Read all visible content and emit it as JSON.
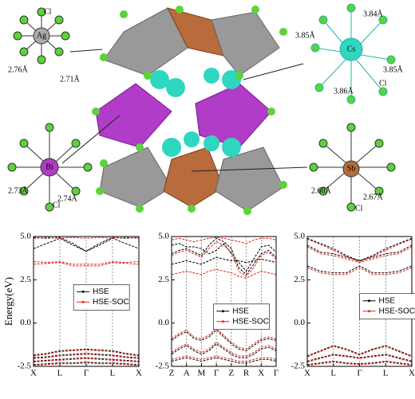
{
  "structure": {
    "ag": {
      "atom": "Ag",
      "bond1": "2.76Å",
      "bond2": "2.71Å",
      "ligand": "Cl"
    },
    "cs": {
      "atom": "Cs",
      "bond1": "3.84Å",
      "bond2": "3.85Å",
      "bond3": "3.85Å",
      "bond4": "3.86Å",
      "ligand": "Cl"
    },
    "bi": {
      "atom": "Bi",
      "bond1": "2.73Å",
      "bond2": "2.74Å",
      "ligand": "Cl"
    },
    "sb": {
      "atom": "Sb",
      "bond1": "2.68Å",
      "bond2": "2.67Å",
      "ligand": "Cl"
    }
  },
  "chart_data": [
    {
      "type": "line",
      "y_label": "Energy(eV)",
      "legend": "center",
      "grid": true,
      "x": [
        0,
        0.5,
        1,
        1.5,
        2,
        2.5,
        3,
        3.5,
        4
      ],
      "xlim": [
        0,
        4
      ],
      "xticks": [
        {
          "value": 0,
          "label": "X"
        },
        {
          "value": 1,
          "label": "L"
        },
        {
          "value": 2,
          "label": "Γ"
        },
        {
          "value": 3,
          "label": "L"
        },
        {
          "value": 4,
          "label": "X"
        }
      ],
      "ylim": [
        -2.5,
        5.0
      ],
      "yticks": [
        -2.5,
        {
          "value": 0,
          "label": "0.0"
        },
        2.5,
        {
          "value": 5,
          "label": "5.0"
        }
      ],
      "series": [
        {
          "name": "HSE",
          "color": "#000000",
          "bands": [
            [
              4.95,
              4.9,
              4.95,
              4.6,
              4.15,
              4.6,
              4.95,
              4.9,
              4.95
            ],
            [
              4.3,
              4.6,
              4.9,
              4.5,
              4.15,
              4.5,
              4.9,
              4.6,
              4.3
            ],
            [
              -1.85,
              -1.75,
              -1.6,
              -1.55,
              -1.5,
              -1.55,
              -1.6,
              -1.75,
              -1.85
            ],
            [
              -2.0,
              -1.95,
              -1.85,
              -1.8,
              -1.75,
              -1.8,
              -1.85,
              -1.95,
              -2.0
            ],
            [
              -2.2,
              -2.15,
              -2.1,
              -2.05,
              -2.0,
              -2.05,
              -2.1,
              -2.15,
              -2.2
            ],
            [
              -2.4,
              -2.35,
              -2.3,
              -2.3,
              -2.25,
              -2.3,
              -2.3,
              -2.35,
              -2.4
            ]
          ]
        },
        {
          "name": "HSE-SOC",
          "color": "#e8231c",
          "bands": [
            [
              4.9,
              4.95,
              4.9,
              4.95,
              4.9,
              4.95,
              4.9,
              4.95,
              4.9
            ],
            [
              3.55,
              3.5,
              3.55,
              3.4,
              3.4,
              3.4,
              3.55,
              3.5,
              3.55
            ],
            [
              3.4,
              3.45,
              3.5,
              3.3,
              3.3,
              3.3,
              3.5,
              3.45,
              3.4
            ],
            [
              -1.9,
              -1.8,
              -1.65,
              -1.6,
              -1.55,
              -1.6,
              -1.65,
              -1.8,
              -1.9
            ],
            [
              -2.05,
              -2.0,
              -1.9,
              -1.85,
              -1.8,
              -1.85,
              -1.9,
              -2.0,
              -2.05
            ],
            [
              -2.25,
              -2.2,
              -2.15,
              -2.1,
              -2.05,
              -2.1,
              -2.15,
              -2.2,
              -2.25
            ],
            [
              -2.45,
              -2.4,
              -2.35,
              -2.35,
              -2.3,
              -2.35,
              -2.35,
              -2.4,
              -2.45
            ]
          ]
        }
      ]
    },
    {
      "type": "line",
      "legend": "center right",
      "grid": true,
      "x": [
        0,
        0.5,
        1,
        1.5,
        2,
        2.5,
        3,
        3.5,
        4,
        4.5,
        5,
        5.5,
        6,
        6.5,
        7
      ],
      "xlim": [
        0,
        7
      ],
      "xticks": [
        {
          "value": 0,
          "label": "Z"
        },
        {
          "value": 1,
          "label": "A"
        },
        {
          "value": 2,
          "label": "M"
        },
        {
          "value": 3,
          "label": "Γ"
        },
        {
          "value": 4,
          "label": "Z"
        },
        {
          "value": 5,
          "label": "R"
        },
        {
          "value": 6,
          "label": "X"
        },
        {
          "value": 7,
          "label": "Γ"
        }
      ],
      "ylim": [
        -2.5,
        5.0
      ],
      "yticks": [
        -2.5,
        {
          "value": 0,
          "label": "0.0"
        },
        2.5,
        {
          "value": 5,
          "label": "5.0"
        }
      ],
      "series": [
        {
          "name": "HSE",
          "color": "#000000",
          "bands": [
            [
              4.0,
              4.2,
              4.3,
              4.1,
              3.9,
              4.5,
              4.9,
              4.7,
              4.3,
              3.2,
              2.8,
              3.4,
              4.0,
              4.2,
              3.8
            ],
            [
              4.5,
              4.6,
              4.4,
              4.4,
              4.3,
              4.0,
              4.2,
              4.6,
              4.0,
              3.5,
              3.0,
              3.7,
              4.4,
              4.5,
              4.1
            ],
            [
              3.4,
              3.5,
              3.6,
              3.5,
              3.4,
              3.6,
              3.8,
              3.7,
              3.6,
              3.6,
              3.5,
              3.6,
              3.7,
              3.6,
              3.5
            ],
            [
              -1.0,
              -0.7,
              -0.5,
              -0.9,
              -1.0,
              -0.8,
              -0.4,
              -0.8,
              -1.2,
              -1.5,
              -1.6,
              -1.3,
              -1.0,
              -0.9,
              -1.0
            ],
            [
              -1.8,
              -1.5,
              -1.3,
              -1.6,
              -1.8,
              -1.6,
              -1.2,
              -1.5,
              -1.8,
              -2.0,
              -2.0,
              -1.8,
              -1.5,
              -1.4,
              -1.6
            ],
            [
              -2.2,
              -2.1,
              -2.0,
              -2.1,
              -2.2,
              -2.1,
              -2.0,
              -2.1,
              -2.2,
              -2.3,
              -2.3,
              -2.2,
              -2.1,
              -2.1,
              -2.2
            ]
          ]
        },
        {
          "name": "HSE-SOC",
          "color": "#e8231c",
          "bands": [
            [
              4.8,
              4.9,
              4.8,
              4.7,
              4.8,
              4.9,
              4.95,
              4.9,
              4.8,
              4.7,
              4.6,
              4.8,
              4.9,
              4.9,
              4.8
            ],
            [
              3.9,
              4.1,
              4.2,
              4.0,
              3.8,
              4.3,
              4.7,
              4.5,
              4.1,
              3.0,
              2.7,
              3.2,
              3.9,
              4.1,
              3.7
            ],
            [
              2.8,
              2.9,
              3.0,
              2.9,
              2.8,
              3.0,
              3.1,
              3.0,
              2.9,
              2.7,
              2.6,
              2.8,
              3.0,
              2.9,
              2.8
            ],
            [
              -0.9,
              -0.6,
              -0.4,
              -0.8,
              -0.9,
              -0.7,
              -0.3,
              -0.7,
              -1.1,
              -1.4,
              -1.5,
              -1.2,
              -0.9,
              -0.8,
              -0.9
            ],
            [
              -1.7,
              -1.4,
              -1.2,
              -1.5,
              -1.7,
              -1.5,
              -1.1,
              -1.4,
              -1.7,
              -1.9,
              -1.9,
              -1.7,
              -1.4,
              -1.3,
              -1.5
            ],
            [
              -2.1,
              -2.0,
              -1.9,
              -2.0,
              -2.1,
              -2.0,
              -1.9,
              -2.0,
              -2.1,
              -2.2,
              -2.2,
              -2.1,
              -2.0,
              -2.0,
              -2.1
            ]
          ]
        }
      ]
    },
    {
      "type": "line",
      "legend": "right",
      "grid": true,
      "x": [
        0,
        0.5,
        1,
        1.5,
        2,
        2.5,
        3,
        3.5,
        4
      ],
      "xlim": [
        0,
        4
      ],
      "xticks": [
        {
          "value": 0,
          "label": "X"
        },
        {
          "value": 1,
          "label": "L"
        },
        {
          "value": 2,
          "label": "Γ"
        },
        {
          "value": 3,
          "label": "L"
        },
        {
          "value": 4,
          "label": "X"
        }
      ],
      "ylim": [
        -2.5,
        5.0
      ],
      "yticks": [
        -2.5,
        {
          "value": 0,
          "label": "0.0"
        },
        2.5,
        {
          "value": 5,
          "label": "5.0"
        }
      ],
      "series": [
        {
          "name": "HSE",
          "color": "#000000",
          "bands": [
            [
              4.5,
              4.1,
              4.0,
              3.8,
              3.6,
              3.8,
              4.0,
              4.1,
              4.5
            ],
            [
              4.9,
              4.6,
              4.3,
              3.9,
              3.6,
              3.9,
              4.3,
              4.6,
              4.9
            ],
            [
              3.3,
              3.0,
              2.9,
              2.9,
              3.3,
              2.9,
              2.9,
              3.0,
              3.3
            ],
            [
              -1.9,
              -1.6,
              -1.3,
              -1.5,
              -1.8,
              -1.5,
              -1.3,
              -1.6,
              -1.9
            ],
            [
              -2.2,
              -2.0,
              -1.8,
              -1.9,
              -2.0,
              -1.9,
              -1.8,
              -2.0,
              -2.2
            ],
            [
              -2.4,
              -2.3,
              -2.2,
              -2.3,
              -2.35,
              -2.3,
              -2.2,
              -2.3,
              -2.4
            ]
          ]
        },
        {
          "name": "HSE-SOC",
          "color": "#e8231c",
          "bands": [
            [
              4.4,
              4.0,
              3.9,
              3.7,
              3.5,
              3.7,
              3.9,
              4.0,
              4.4
            ],
            [
              4.85,
              4.55,
              4.2,
              3.85,
              3.55,
              3.85,
              4.2,
              4.55,
              4.85
            ],
            [
              3.2,
              2.9,
              2.8,
              2.8,
              3.2,
              2.8,
              2.8,
              2.9,
              3.2
            ],
            [
              -1.95,
              -1.65,
              -1.35,
              -1.55,
              -1.85,
              -1.55,
              -1.35,
              -1.65,
              -1.95
            ],
            [
              -2.25,
              -2.05,
              -1.85,
              -1.95,
              -2.05,
              -1.95,
              -1.85,
              -2.05,
              -2.25
            ],
            [
              -2.45,
              -2.35,
              -2.25,
              -2.35,
              -2.4,
              -2.35,
              -2.25,
              -2.35,
              -2.45
            ]
          ]
        }
      ]
    }
  ]
}
